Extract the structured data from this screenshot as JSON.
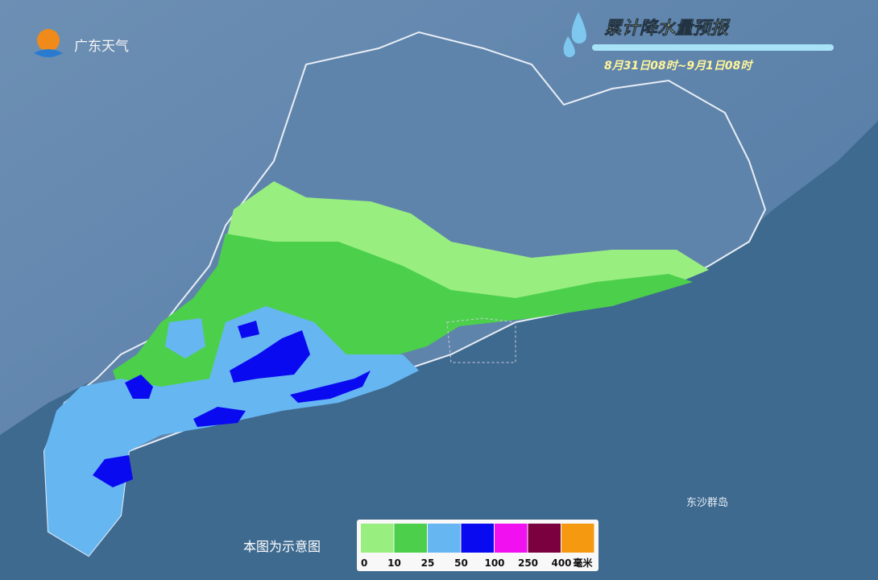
{
  "logo": {
    "text": "广东天气"
  },
  "header": {
    "title": "累计降水量预报",
    "subtitle": "8月31日08时~9月1日08时"
  },
  "map": {
    "island_label": "东沙群岛",
    "note": "本图为示意图"
  },
  "legend": {
    "colors": [
      "#99ee80",
      "#4cd04c",
      "#66b6f2",
      "#0a0af0",
      "#f010f0",
      "#7a0040",
      "#f59a10"
    ],
    "ticks": [
      0,
      10,
      25,
      50,
      100,
      250,
      400
    ],
    "unit": "毫米"
  }
}
